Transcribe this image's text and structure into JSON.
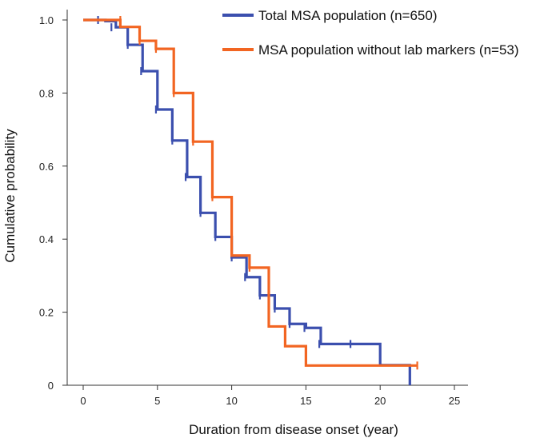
{
  "chart_data": {
    "type": "line",
    "subtype": "kaplan-meier-step",
    "title": "",
    "xlabel": "Duration from disease onset (year)",
    "ylabel": "Cumulative probability",
    "xlim": [
      0,
      25
    ],
    "ylim": [
      0,
      1.0
    ],
    "x_ticks": [
      0,
      5,
      10,
      15,
      20,
      25
    ],
    "x_tick_labels": [
      "0",
      "5",
      "10",
      "15",
      "20",
      "25"
    ],
    "y_ticks": [
      0,
      0.2,
      0.4,
      0.6,
      0.8,
      1.0
    ],
    "y_tick_labels": [
      "0",
      "0.2",
      "0.4",
      "0.6",
      "0.8",
      "1.0"
    ],
    "grid": false,
    "legend_position": "top-right",
    "series": [
      {
        "name": "Total MSA population (n=650)",
        "color": "#3b4fae",
        "steps": [
          [
            0,
            1.0
          ],
          [
            1.5,
            0.997
          ],
          [
            2.2,
            0.98
          ],
          [
            3.0,
            0.932
          ],
          [
            4.0,
            0.86
          ],
          [
            5.0,
            0.755
          ],
          [
            6.0,
            0.67
          ],
          [
            7.0,
            0.57
          ],
          [
            7.9,
            0.472
          ],
          [
            8.9,
            0.406
          ],
          [
            10.0,
            0.35
          ],
          [
            11.0,
            0.296
          ],
          [
            11.9,
            0.246
          ],
          [
            12.9,
            0.21
          ],
          [
            13.9,
            0.168
          ],
          [
            15.0,
            0.157
          ],
          [
            16.0,
            0.113
          ],
          [
            20.0,
            0.055
          ],
          [
            22.0,
            0.0
          ]
        ],
        "censored": [
          [
            1.0,
            1.0
          ],
          [
            1.9,
            0.98
          ],
          [
            3.0,
            0.932
          ],
          [
            3.9,
            0.86
          ],
          [
            4.9,
            0.755
          ],
          [
            6.0,
            0.67
          ],
          [
            6.9,
            0.57
          ],
          [
            7.9,
            0.472
          ],
          [
            8.9,
            0.406
          ],
          [
            10.0,
            0.35
          ],
          [
            10.9,
            0.296
          ],
          [
            11.9,
            0.246
          ],
          [
            12.9,
            0.21
          ],
          [
            13.9,
            0.168
          ],
          [
            14.9,
            0.157
          ],
          [
            15.9,
            0.113
          ],
          [
            18.0,
            0.113
          ]
        ]
      },
      {
        "name": "MSA population without lab markers (n=53)",
        "color": "#f26522",
        "steps": [
          [
            0,
            1.0
          ],
          [
            2.5,
            0.981
          ],
          [
            3.8,
            0.943
          ],
          [
            4.9,
            0.921
          ],
          [
            6.1,
            0.8
          ],
          [
            7.4,
            0.667
          ],
          [
            8.7,
            0.515
          ],
          [
            10.0,
            0.355
          ],
          [
            11.2,
            0.322
          ],
          [
            12.5,
            0.161
          ],
          [
            13.6,
            0.107
          ],
          [
            15.0,
            0.054
          ],
          [
            22.5,
            0.054
          ]
        ],
        "censored": [
          [
            2.5,
            1.0
          ],
          [
            3.8,
            0.943
          ],
          [
            4.9,
            0.921
          ],
          [
            6.1,
            0.8
          ],
          [
            7.4,
            0.667
          ],
          [
            8.7,
            0.515
          ],
          [
            11.2,
            0.322
          ],
          [
            22.5,
            0.054
          ]
        ]
      }
    ]
  }
}
